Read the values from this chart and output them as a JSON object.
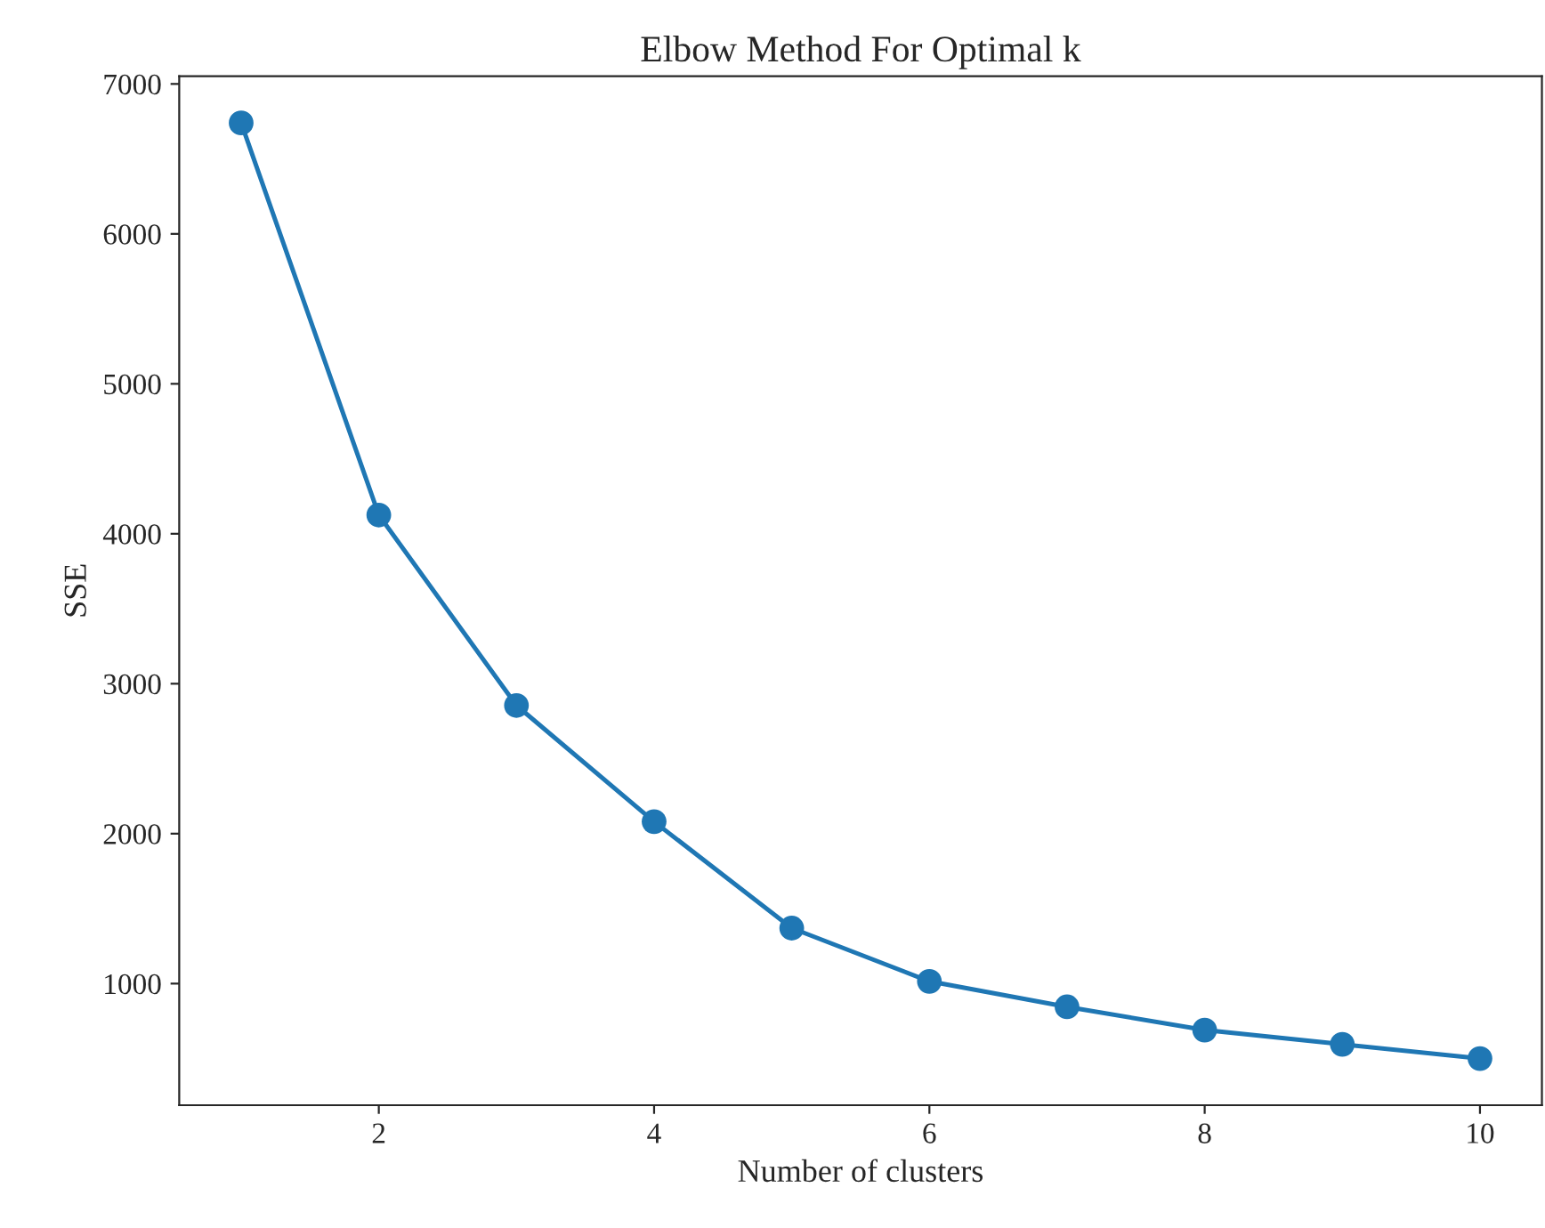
{
  "chart_data": {
    "type": "line",
    "title": "Elbow Method For Optimal k",
    "xlabel": "Number of clusters",
    "ylabel": "SSE",
    "x": [
      1,
      2,
      3,
      4,
      5,
      6,
      7,
      8,
      9,
      10
    ],
    "series": [
      {
        "color": "#1f77b4",
        "values": [
          6740,
          4125,
          2855,
          2080,
          1370,
          1015,
          845,
          690,
          595,
          500
        ]
      }
    ],
    "marker": "circle",
    "line_style": "solid",
    "xlim": [
      0.55,
      10.45
    ],
    "xticks": [
      2,
      4,
      6,
      8,
      10
    ],
    "ylim": [
      189,
      7052
    ],
    "yticks": [
      1000,
      2000,
      3000,
      4000,
      5000,
      6000,
      7000
    ],
    "grid": false,
    "legend": false
  }
}
